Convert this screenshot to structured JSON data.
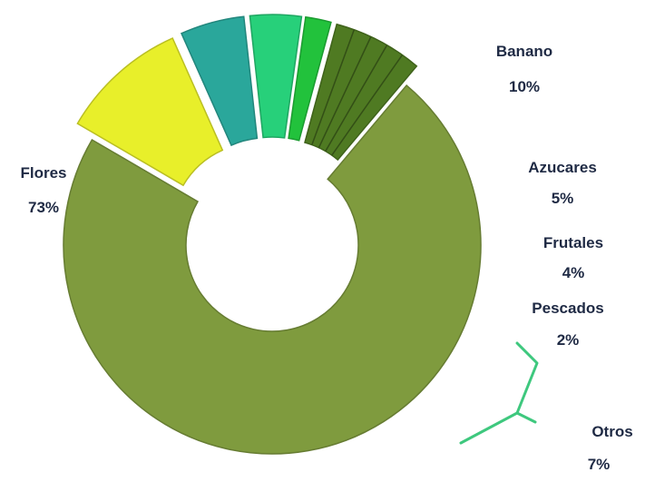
{
  "chart_data": {
    "type": "pie",
    "style": "doughnut",
    "title": "",
    "categories": [
      "Flores",
      "Banano",
      "Azucares",
      "Frutales",
      "Pescados",
      "Otros"
    ],
    "values": [
      73,
      10,
      5,
      4,
      2,
      7
    ],
    "value_labels": [
      "73%",
      "10%",
      "5%",
      "4%",
      "2%",
      "7%"
    ],
    "colors": [
      "#7f9b3e",
      "#e8ef2a",
      "#2aa79b",
      "#27d07a",
      "#22c23c",
      "#4f7a22"
    ],
    "exploded": [
      "Banano",
      "Azucares",
      "Frutales",
      "Pescados",
      "Otros"
    ],
    "bracket": {
      "label": "Otros",
      "color": "#3ec87e"
    },
    "legend": "none"
  }
}
